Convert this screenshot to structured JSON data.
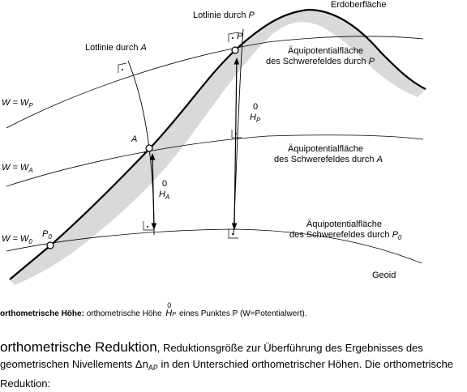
{
  "diagram": {
    "labels": {
      "erdoberflaeche": "Erdoberfläche",
      "lotlinie_p": "Lotlinie durch",
      "lotlinie_p_pt": "P",
      "lotlinie_a": "Lotlinie durch",
      "lotlinie_a_pt": "A",
      "point_p": "P",
      "point_a": "A",
      "point_p0": "P",
      "point_p0_sub": "0",
      "aequi_p_l1": "Äquipotentialfläche",
      "aequi_p_l2": "des Schwerefeldes durch",
      "aequi_p_pt": "P",
      "aequi_a_l1": "Äquipotentialfläche",
      "aequi_a_l2": "des Schwerefeldes durch",
      "aequi_a_pt": "A",
      "aequi_p0_l1": "Äquipotentialfläche",
      "aequi_p0_l2": "des Schwerefeldes durch",
      "aequi_p0_pt": "P",
      "aequi_p0_sub": "0",
      "w_p": "W = W",
      "w_p_sub": "P",
      "w_a": "W = W",
      "w_a_sub": "A",
      "w_0": "W = W",
      "w_0_sub": "0",
      "hp_sup": "0",
      "hp_h": "H",
      "hp_sub": "P",
      "ha_sup": "0",
      "ha_h": "H",
      "ha_sub": "A",
      "geoid": "Geoid"
    }
  },
  "caption": {
    "term": "orthometrische Höhe:",
    "text_before": "orthometrische Höhe",
    "h_sup": "0",
    "h_letter": "H",
    "h_sub": "P",
    "text_after": "eines Punktes P (W=Potentialwert)."
  },
  "entry": {
    "headword": "orthometrische Reduktion",
    "text_1": ", Reduktionsgröße zur Überführung des Ergebnisses des geometrischen Nivellements Δn",
    "sub": "AP",
    "text_2": " in den Unterschied orthometrischer Höhen. Die orthometrische Reduktion:"
  }
}
